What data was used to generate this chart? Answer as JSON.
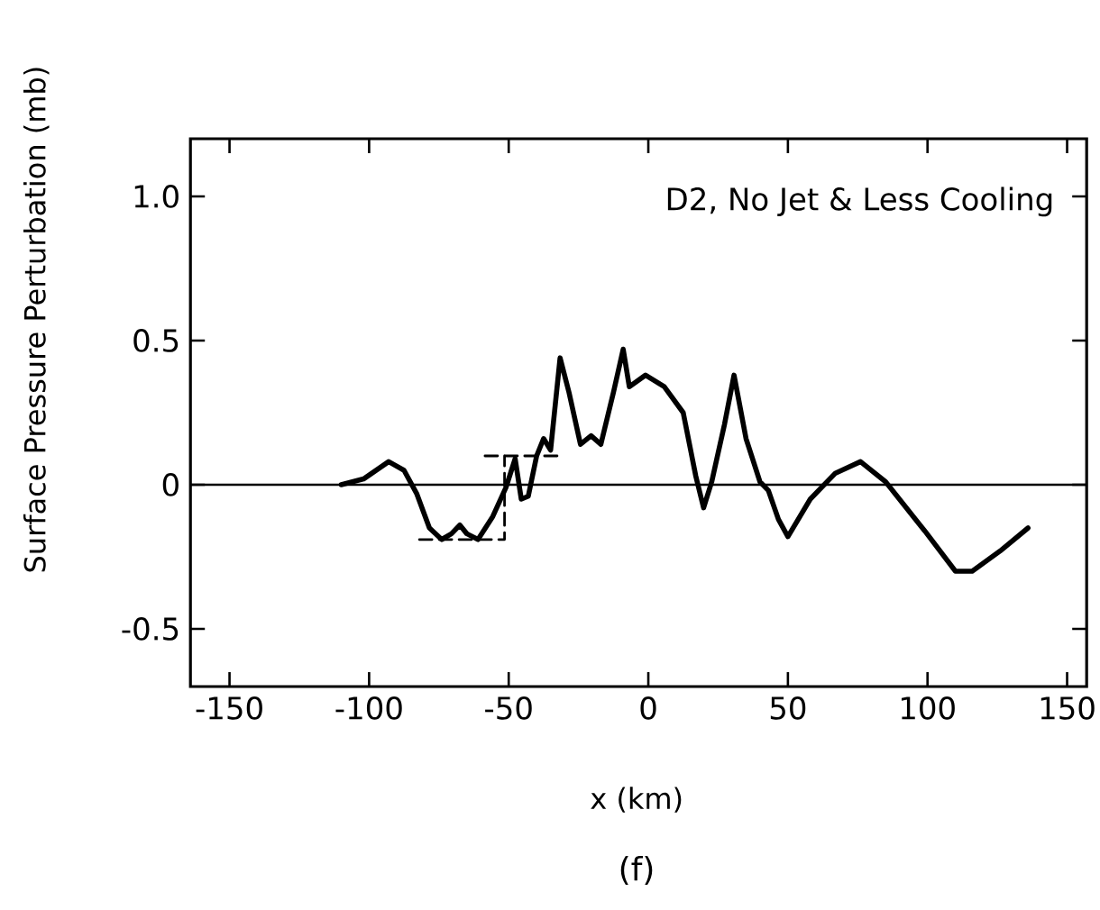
{
  "chart_data": {
    "type": "line",
    "xlabel": "x (km)",
    "ylabel": "Surface Pressure Perturbation (mb)",
    "annotations": [
      "D2, No Jet & Less Cooling",
      "(f)"
    ],
    "xlim": [
      -164,
      157
    ],
    "ylim": [
      -0.7,
      1.2
    ],
    "xticks": [
      -150,
      -100,
      -50,
      0,
      50,
      100,
      150
    ],
    "yticks": [
      {
        "value": 1.0,
        "label": "1.0"
      },
      {
        "value": 0.5,
        "label": "0.5"
      },
      0,
      {
        "value": -0.5,
        "label": "-0.5"
      }
    ],
    "ref_lines": [
      {
        "axis": "y",
        "value": 0,
        "color": "#000000"
      }
    ],
    "series": [
      {
        "color": "#000000",
        "line_style": "solid",
        "x": [
          -110,
          -102,
          -93,
          -87.5,
          -83,
          -78.4,
          -74,
          -70.5,
          -67.5,
          -65,
          -61,
          -55.7,
          -51,
          -47.7,
          -45.5,
          -43,
          -40,
          -37.5,
          -35,
          -31.6,
          -28.4,
          -24.3,
          -20.5,
          -17,
          -12.5,
          -9,
          -6.8,
          -1,
          5.7,
          12.5,
          17,
          19.8,
          22.7,
          27.3,
          30.7,
          35,
          40,
          43,
          46.6,
          50,
          58,
          67,
          76,
          85,
          99,
          110,
          116,
          126,
          136
        ],
        "values": [
          0,
          0.02,
          0.08,
          0.05,
          -0.03,
          -0.15,
          -0.19,
          -0.17,
          -0.14,
          -0.17,
          -0.19,
          -0.11,
          -0.01,
          0.09,
          -0.05,
          -0.04,
          0.1,
          0.16,
          0.12,
          0.44,
          0.32,
          0.14,
          0.17,
          0.14,
          0.32,
          0.47,
          0.34,
          0.38,
          0.34,
          0.25,
          0.03,
          -0.08,
          0.01,
          0.21,
          0.38,
          0.16,
          0.01,
          -0.02,
          -0.12,
          -0.18,
          -0.05,
          0.04,
          0.08,
          0.01,
          -0.16,
          -0.3,
          -0.3,
          -0.23,
          -0.15
        ]
      },
      {
        "color": "#000000",
        "line_style": "dashed",
        "x": [
          -82,
          -51.5,
          -51.5,
          -55,
          -58.5,
          -32.5
        ],
        "values": [
          -0.19,
          -0.19,
          0.1,
          null,
          0.1,
          0.1
        ]
      }
    ]
  }
}
